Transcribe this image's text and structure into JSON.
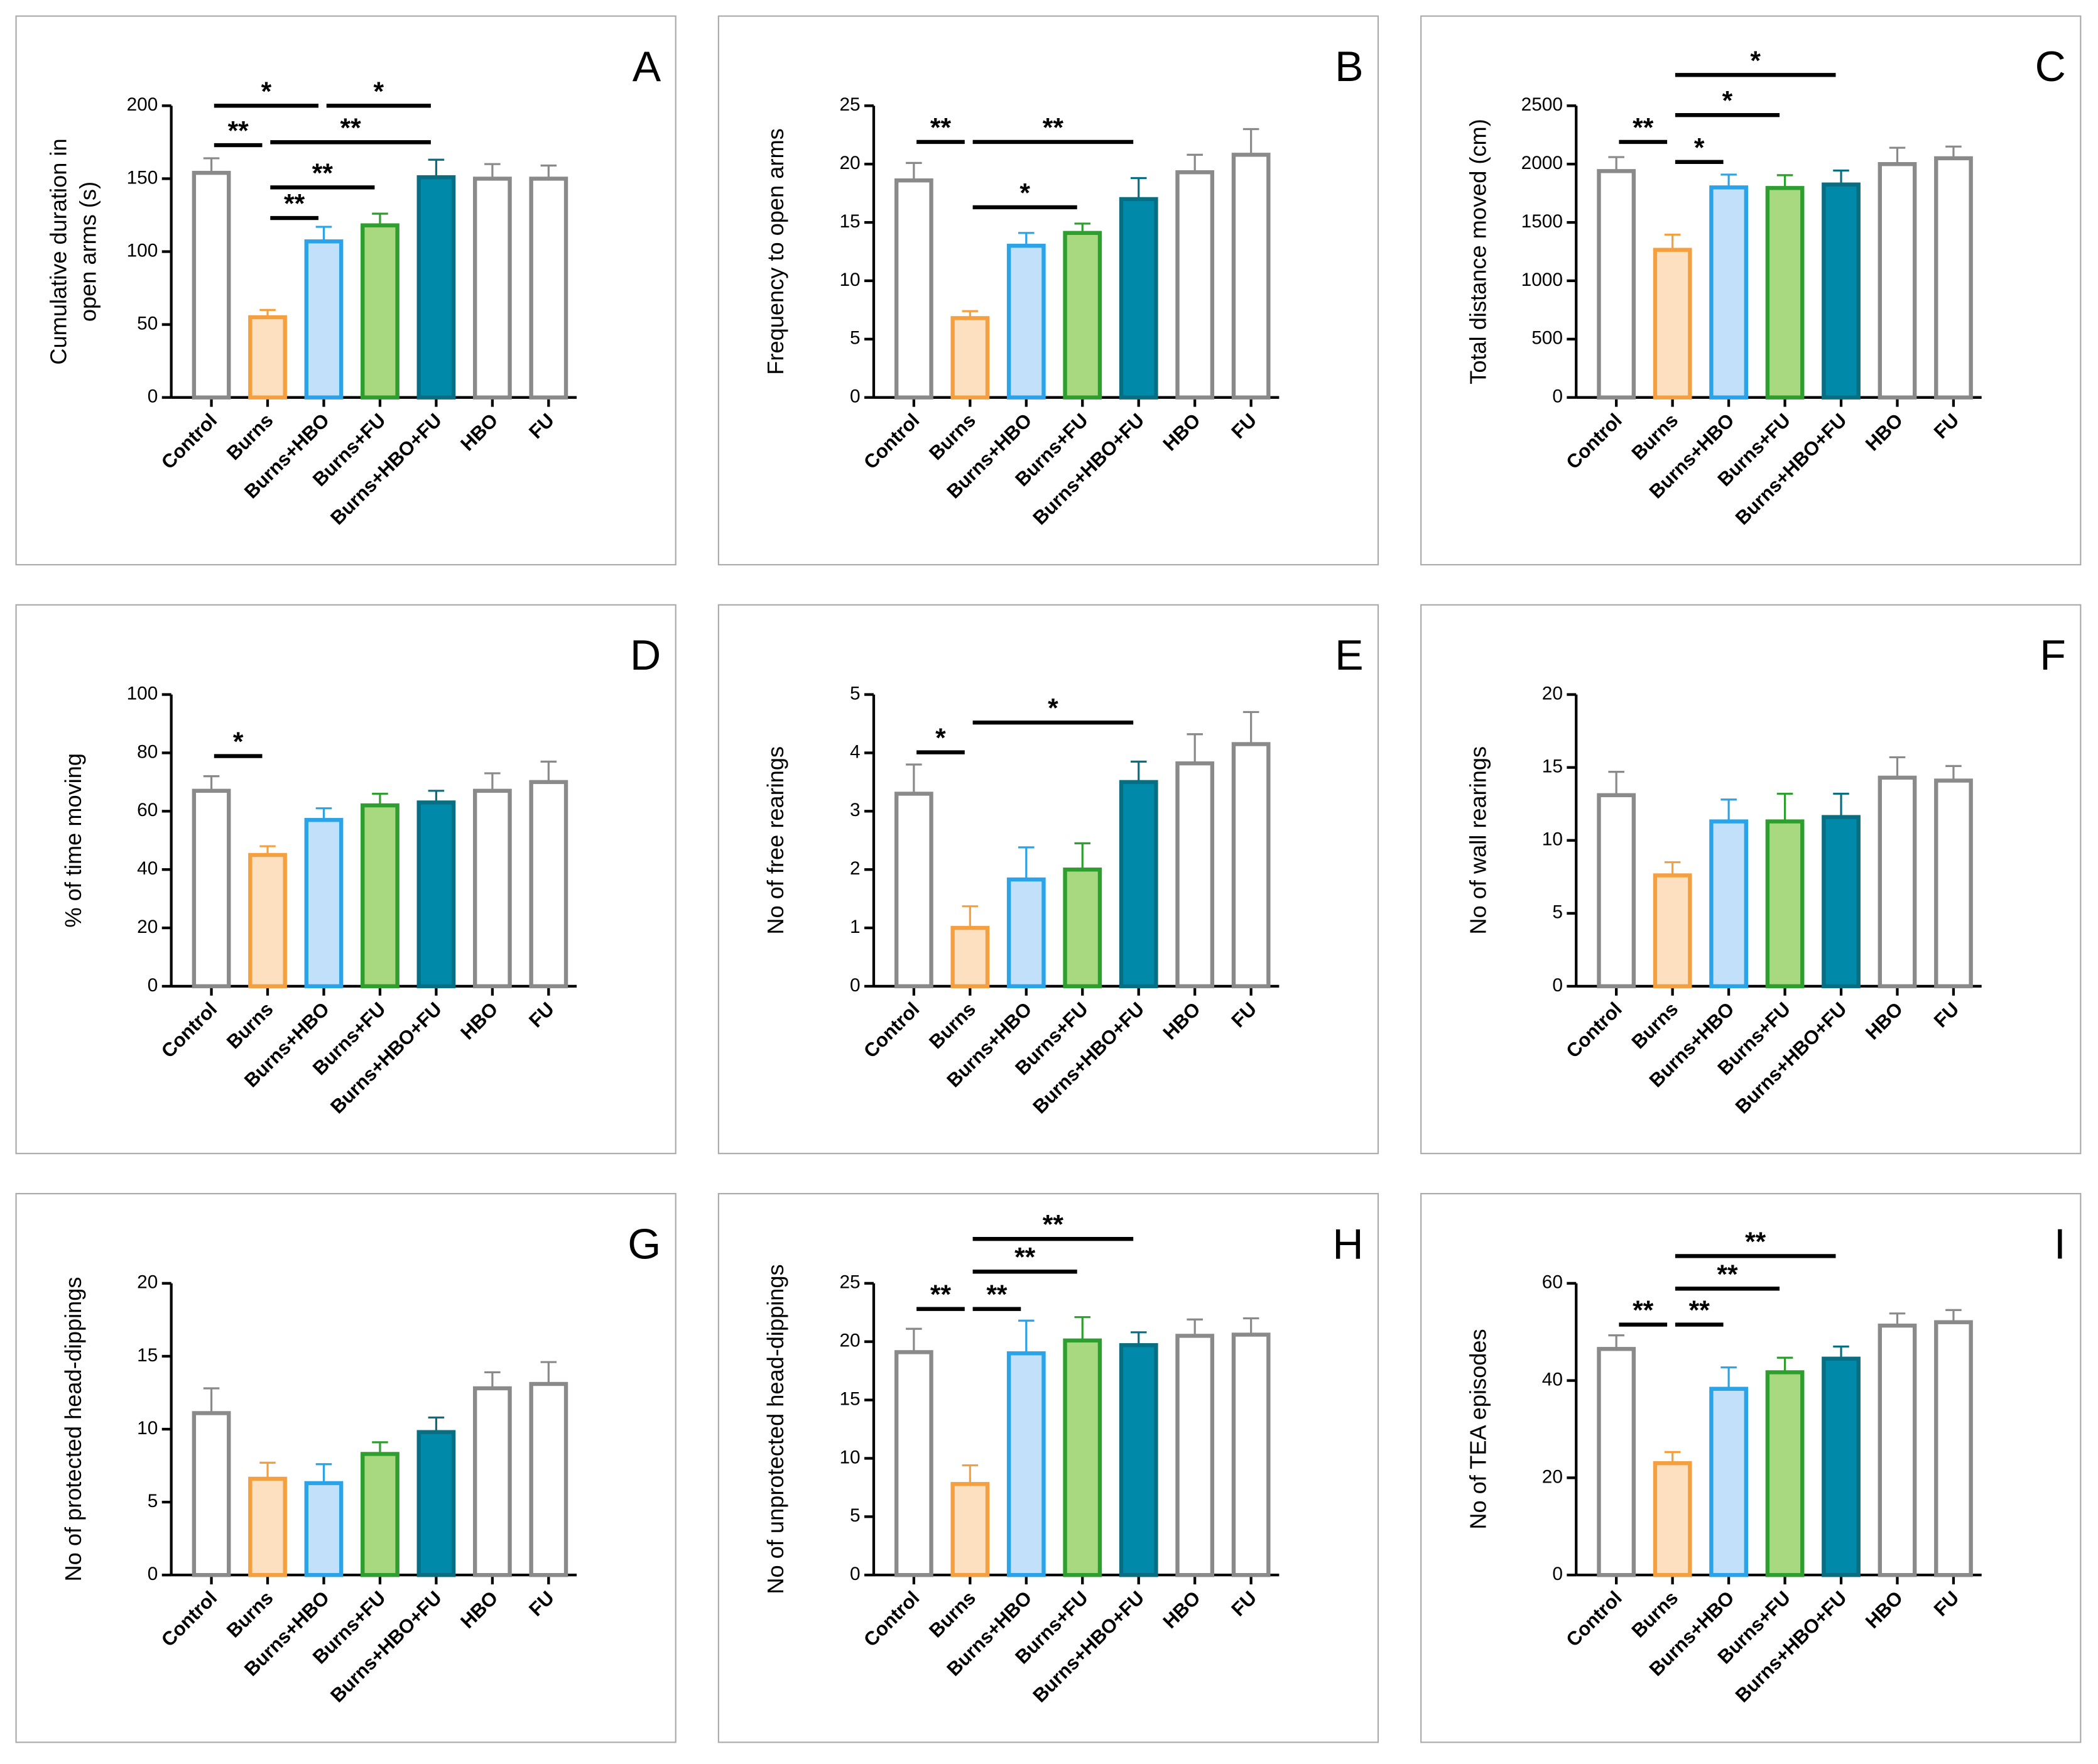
{
  "chart_data": [
    {
      "type": "bar",
      "panel": "A",
      "ylabel": [
        "Cumulative duration in",
        "open arms (s)"
      ],
      "categories": [
        "Control",
        "Burns",
        "Burns+HBO",
        "Burns+FU",
        "Burns+HBO+FU",
        "HBO",
        "FU"
      ],
      "values": [
        154,
        55,
        107,
        118,
        151,
        150,
        150
      ],
      "errors": [
        10,
        5,
        10,
        8,
        12,
        10,
        9
      ],
      "colors": [
        "#ffffff",
        "#fde0c0",
        "#c2e0fa",
        "#a8d880",
        "#0089a8",
        "#ffffff",
        "#ffffff"
      ],
      "edgecolors": [
        "#8a8a8a",
        "#f5a040",
        "#2aa3e8",
        "#2e9e2e",
        "#0a6e82",
        "#8a8a8a",
        "#8a8a8a"
      ],
      "ylim": [
        0,
        200
      ],
      "yticks": [
        0,
        50,
        100,
        150,
        200
      ],
      "annotations": [
        {
          "label": "*",
          "from": "Control",
          "to": "Burns+HBO",
          "y": 200
        },
        {
          "label": "*",
          "from": "Burns+HBO",
          "to": "Burns+HBO+FU",
          "y": 200
        },
        {
          "label": "**",
          "from": "Control",
          "to": "Burns",
          "y": 173
        },
        {
          "label": "**",
          "from": "Burns",
          "to": "Burns+HBO+FU",
          "y": 175
        },
        {
          "label": "**",
          "from": "Burns",
          "to": "Burns+FU",
          "y": 144
        },
        {
          "label": "**",
          "from": "Burns",
          "to": "Burns+HBO",
          "y": 123
        }
      ]
    },
    {
      "type": "bar",
      "panel": "B",
      "ylabel": [
        "Frequency to open arms"
      ],
      "categories": [
        "Control",
        "Burns",
        "Burns+HBO",
        "Burns+FU",
        "Burns+HBO+FU",
        "HBO",
        "FU"
      ],
      "values": [
        18.6,
        6.8,
        13,
        14.1,
        17,
        19.3,
        20.8
      ],
      "errors": [
        1.5,
        0.6,
        1.1,
        0.8,
        1.8,
        1.5,
        2.2
      ],
      "colors": [
        "#ffffff",
        "#fde0c0",
        "#c2e0fa",
        "#a8d880",
        "#0089a8",
        "#ffffff",
        "#ffffff"
      ],
      "edgecolors": [
        "#8a8a8a",
        "#f5a040",
        "#2aa3e8",
        "#2e9e2e",
        "#0a6e82",
        "#8a8a8a",
        "#8a8a8a"
      ],
      "ylim": [
        0,
        25
      ],
      "yticks": [
        0,
        5,
        10,
        15,
        20,
        25
      ],
      "annotations": [
        {
          "label": "**",
          "from": "Control",
          "to": "Burns",
          "y": 21.9
        },
        {
          "label": "**",
          "from": "Burns",
          "to": "Burns+HBO+FU",
          "y": 21.9
        },
        {
          "label": "*",
          "from": "Burns",
          "to": "Burns+FU",
          "y": 16.3
        }
      ]
    },
    {
      "type": "bar",
      "panel": "C",
      "ylabel": [
        "Total distance moved (cm)"
      ],
      "categories": [
        "Control",
        "Burns",
        "Burns+HBO",
        "Burns+FU",
        "Burns+HBO+FU",
        "HBO",
        "FU"
      ],
      "values": [
        1940,
        1265,
        1800,
        1795,
        1825,
        2000,
        2050
      ],
      "errors": [
        120,
        130,
        110,
        110,
        120,
        140,
        100
      ],
      "colors": [
        "#ffffff",
        "#fde0c0",
        "#c2e0fa",
        "#a8d880",
        "#0089a8",
        "#ffffff",
        "#ffffff"
      ],
      "edgecolors": [
        "#8a8a8a",
        "#f5a040",
        "#2aa3e8",
        "#2e9e2e",
        "#0a6e82",
        "#8a8a8a",
        "#8a8a8a"
      ],
      "ylim": [
        0,
        2500
      ],
      "yticks": [
        0,
        500,
        1000,
        1500,
        2000,
        2500
      ],
      "annotations": [
        {
          "label": "**",
          "from": "Control",
          "to": "Burns",
          "y": 2190
        },
        {
          "label": "*",
          "from": "Burns",
          "to": "Burns+HBO",
          "y": 2018
        },
        {
          "label": "*",
          "from": "Burns",
          "to": "Burns+FU",
          "y": 2420
        },
        {
          "label": "*",
          "from": "Burns",
          "to": "Burns+HBO+FU",
          "y": 2764
        }
      ]
    },
    {
      "type": "bar",
      "panel": "D",
      "ylabel": [
        "% of time moving"
      ],
      "categories": [
        "Control",
        "Burns",
        "Burns+HBO",
        "Burns+FU",
        "Burns+HBO+FU",
        "HBO",
        "FU"
      ],
      "values": [
        67,
        45,
        57,
        62,
        63,
        67,
        70
      ],
      "errors": [
        5,
        3,
        4,
        4,
        4,
        6,
        7
      ],
      "colors": [
        "#ffffff",
        "#fde0c0",
        "#c2e0fa",
        "#a8d880",
        "#0089a8",
        "#ffffff",
        "#ffffff"
      ],
      "edgecolors": [
        "#8a8a8a",
        "#f5a040",
        "#2aa3e8",
        "#2e9e2e",
        "#0a6e82",
        "#8a8a8a",
        "#8a8a8a"
      ],
      "ylim": [
        0,
        100
      ],
      "yticks": [
        0,
        20,
        40,
        60,
        80,
        100
      ],
      "annotations": [
        {
          "label": "*",
          "from": "Control",
          "to": "Burns",
          "y": 78.9
        }
      ]
    },
    {
      "type": "bar",
      "panel": "E",
      "ylabel": [
        "No of free rearings"
      ],
      "categories": [
        "Control",
        "Burns",
        "Burns+HBO",
        "Burns+FU",
        "Burns+HBO+FU",
        "HBO",
        "FU"
      ],
      "values": [
        3.3,
        1.0,
        1.83,
        2.0,
        3.5,
        3.82,
        4.15
      ],
      "errors": [
        0.5,
        0.37,
        0.55,
        0.45,
        0.35,
        0.5,
        0.55
      ],
      "colors": [
        "#ffffff",
        "#fde0c0",
        "#c2e0fa",
        "#a8d880",
        "#0089a8",
        "#ffffff",
        "#ffffff"
      ],
      "edgecolors": [
        "#8a8a8a",
        "#f5a040",
        "#2aa3e8",
        "#2e9e2e",
        "#0a6e82",
        "#8a8a8a",
        "#8a8a8a"
      ],
      "ylim": [
        0,
        5
      ],
      "yticks": [
        0,
        1,
        2,
        3,
        4,
        5
      ],
      "annotations": [
        {
          "label": "*",
          "from": "Control",
          "to": "Burns",
          "y": 4.01
        },
        {
          "label": "*",
          "from": "Burns",
          "to": "Burns+HBO+FU",
          "y": 4.52
        }
      ]
    },
    {
      "type": "bar",
      "panel": "F",
      "ylabel": [
        "No of wall rearings"
      ],
      "categories": [
        "Control",
        "Burns",
        "Burns+HBO",
        "Burns+FU",
        "Burns+HBO+FU",
        "HBO",
        "FU"
      ],
      "values": [
        13.1,
        7.6,
        11.3,
        11.3,
        11.6,
        14.3,
        14.1
      ],
      "errors": [
        1.6,
        0.9,
        1.5,
        1.9,
        1.6,
        1.4,
        1.0
      ],
      "colors": [
        "#ffffff",
        "#fde0c0",
        "#c2e0fa",
        "#a8d880",
        "#0089a8",
        "#ffffff",
        "#ffffff"
      ],
      "edgecolors": [
        "#8a8a8a",
        "#f5a040",
        "#2aa3e8",
        "#2e9e2e",
        "#0a6e82",
        "#8a8a8a",
        "#8a8a8a"
      ],
      "ylim": [
        0,
        20
      ],
      "yticks": [
        0,
        5,
        10,
        15,
        20
      ],
      "annotations": []
    },
    {
      "type": "bar",
      "panel": "G",
      "ylabel": [
        "No of protected head-dippings"
      ],
      "categories": [
        "Control",
        "Burns",
        "Burns+HBO",
        "Burns+FU",
        "Burns+HBO+FU",
        "HBO",
        "FU"
      ],
      "values": [
        11.1,
        6.6,
        6.3,
        8.3,
        9.8,
        12.8,
        13.1
      ],
      "errors": [
        1.7,
        1.1,
        1.3,
        0.8,
        1.0,
        1.1,
        1.5
      ],
      "colors": [
        "#ffffff",
        "#fde0c0",
        "#c2e0fa",
        "#a8d880",
        "#0089a8",
        "#ffffff",
        "#ffffff"
      ],
      "edgecolors": [
        "#8a8a8a",
        "#f5a040",
        "#2aa3e8",
        "#2e9e2e",
        "#0a6e82",
        "#8a8a8a",
        "#8a8a8a"
      ],
      "ylim": [
        0,
        20
      ],
      "yticks": [
        0,
        5,
        10,
        15,
        20
      ],
      "annotations": []
    },
    {
      "type": "bar",
      "panel": "H",
      "ylabel": [
        "No of unprotected head-dippings"
      ],
      "categories": [
        "Control",
        "Burns",
        "Burns+HBO",
        "Burns+FU",
        "Burns+HBO+FU",
        "HBO",
        "FU"
      ],
      "values": [
        19.1,
        7.8,
        19,
        20.1,
        19.7,
        20.5,
        20.6
      ],
      "errors": [
        2,
        1.6,
        2.8,
        2,
        1.1,
        1.4,
        1.4
      ],
      "colors": [
        "#ffffff",
        "#fde0c0",
        "#c2e0fa",
        "#a8d880",
        "#0089a8",
        "#ffffff",
        "#ffffff"
      ],
      "edgecolors": [
        "#8a8a8a",
        "#f5a040",
        "#2aa3e8",
        "#2e9e2e",
        "#0a6e82",
        "#8a8a8a",
        "#8a8a8a"
      ],
      "ylim": [
        0,
        25
      ],
      "yticks": [
        0,
        5,
        10,
        15,
        20,
        25
      ],
      "annotations": [
        {
          "label": "**",
          "from": "Control",
          "to": "Burns",
          "y": 22.8
        },
        {
          "label": "**",
          "from": "Burns",
          "to": "Burns+HBO",
          "y": 22.8
        },
        {
          "label": "**",
          "from": "Burns",
          "to": "Burns+FU",
          "y": 26.0
        },
        {
          "label": "**",
          "from": "Burns",
          "to": "Burns+HBO+FU",
          "y": 28.8
        }
      ]
    },
    {
      "type": "bar",
      "panel": "I",
      "ylabel": [
        "No of TEA episodes"
      ],
      "categories": [
        "Control",
        "Burns",
        "Burns+HBO",
        "Burns+FU",
        "Burns+HBO+FU",
        "HBO",
        "FU"
      ],
      "values": [
        46.5,
        23,
        38.3,
        41.7,
        44.5,
        51.3,
        52
      ],
      "errors": [
        2.8,
        2.3,
        4.4,
        3,
        2.5,
        2.5,
        2.5
      ],
      "colors": [
        "#ffffff",
        "#fde0c0",
        "#c2e0fa",
        "#a8d880",
        "#0089a8",
        "#ffffff",
        "#ffffff"
      ],
      "edgecolors": [
        "#8a8a8a",
        "#f5a040",
        "#2aa3e8",
        "#2e9e2e",
        "#0a6e82",
        "#8a8a8a",
        "#8a8a8a"
      ],
      "ylim": [
        0,
        60
      ],
      "yticks": [
        0,
        20,
        40,
        60
      ],
      "annotations": [
        {
          "label": "**",
          "from": "Control",
          "to": "Burns",
          "y": 51.5
        },
        {
          "label": "**",
          "from": "Burns",
          "to": "Burns+HBO",
          "y": 51.5
        },
        {
          "label": "**",
          "from": "Burns",
          "to": "Burns+FU",
          "y": 58.9
        },
        {
          "label": "**",
          "from": "Burns",
          "to": "Burns+HBO+FU",
          "y": 65.6
        }
      ]
    }
  ]
}
